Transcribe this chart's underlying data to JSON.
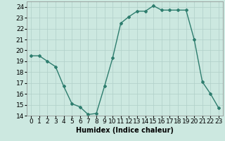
{
  "x": [
    0,
    1,
    2,
    3,
    4,
    5,
    6,
    7,
    8,
    9,
    10,
    11,
    12,
    13,
    14,
    15,
    16,
    17,
    18,
    19,
    20,
    21,
    22,
    23
  ],
  "y": [
    19.5,
    19.5,
    19.0,
    18.5,
    16.7,
    15.1,
    14.8,
    14.1,
    14.2,
    16.7,
    19.3,
    22.5,
    23.1,
    23.6,
    23.6,
    24.1,
    23.7,
    23.7,
    23.7,
    23.7,
    21.0,
    17.1,
    16.0,
    14.7
  ],
  "line_color": "#2e7d6e",
  "marker": "D",
  "marker_size": 2.0,
  "line_width": 1.0,
  "bg_color": "#cce8e0",
  "grid_color": "#b0cfc8",
  "xlabel": "Humidex (Indice chaleur)",
  "xlabel_fontsize": 7,
  "ylim": [
    14,
    24.5
  ],
  "yticks": [
    14,
    15,
    16,
    17,
    18,
    19,
    20,
    21,
    22,
    23,
    24
  ],
  "xticks": [
    0,
    1,
    2,
    3,
    4,
    5,
    6,
    7,
    8,
    9,
    10,
    11,
    12,
    13,
    14,
    15,
    16,
    17,
    18,
    19,
    20,
    21,
    22,
    23
  ],
  "tick_fontsize": 6.5,
  "xlim": [
    -0.5,
    23.5
  ]
}
